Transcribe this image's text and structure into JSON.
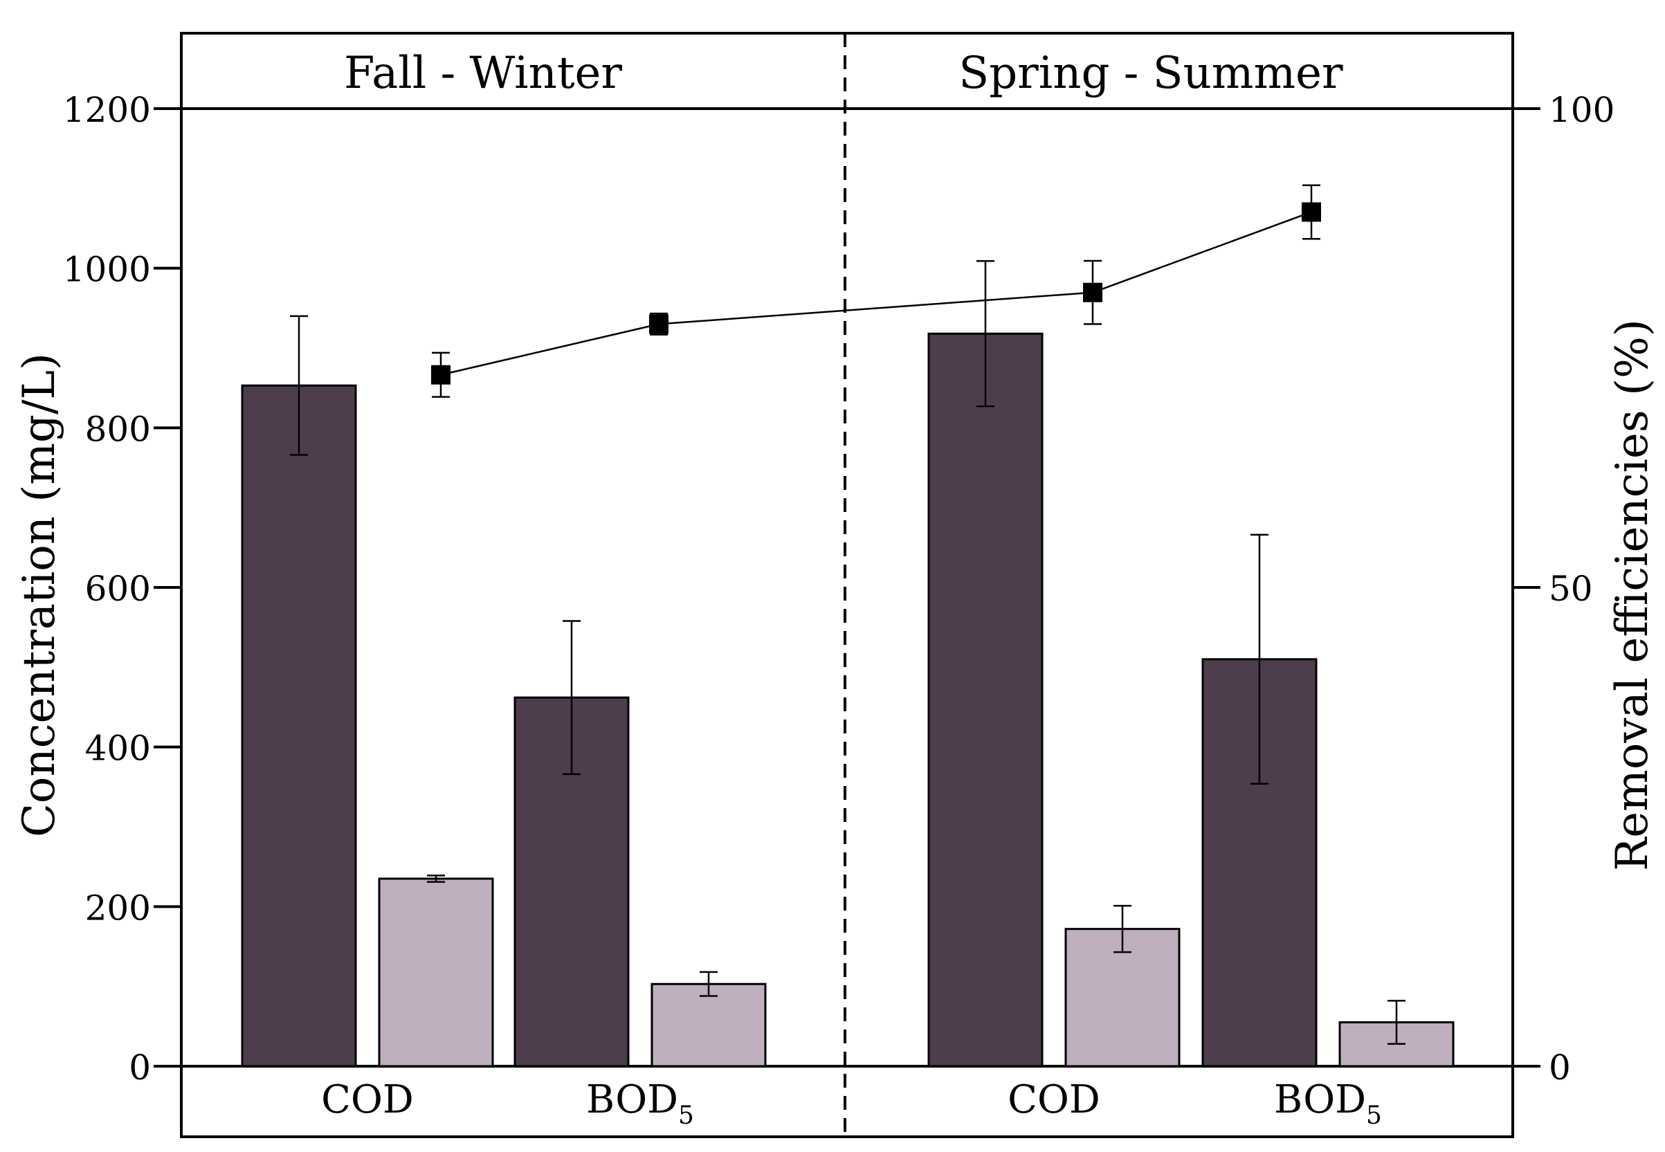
{
  "chart_data": {
    "type": "bar",
    "title": "",
    "panels": [
      {
        "label": "Fall - Winter",
        "groups": [
          "COD",
          "BOD5"
        ]
      },
      {
        "label": "Spring - Summer",
        "groups": [
          "COD",
          "BOD5"
        ]
      }
    ],
    "group_labels": [
      {
        "main": "COD",
        "sub": ""
      },
      {
        "main": "BOD",
        "sub": "5"
      },
      {
        "main": "COD",
        "sub": ""
      },
      {
        "main": "BOD",
        "sub": "5"
      }
    ],
    "ylabel_left": "Concentration (mg/L)",
    "ylabel_right": "Removal efficiencies (%)",
    "ylim_left": [
      0,
      1200
    ],
    "yticks_left": [
      0,
      200,
      400,
      600,
      800,
      1000,
      1200
    ],
    "ylim_right": [
      0,
      100
    ],
    "yticks_right": [
      0,
      50,
      100
    ],
    "bar_series": [
      {
        "color": "#4e3d4d",
        "values": [
          853,
          462,
          918,
          510
        ],
        "errors": [
          87,
          96,
          91,
          156
        ]
      },
      {
        "color": "#bfafbf",
        "values": [
          235,
          103,
          172,
          55
        ],
        "errors": [
          4,
          15,
          29,
          27
        ]
      }
    ],
    "line_series": {
      "axis": "right",
      "marker": "square",
      "color": "#000000",
      "values": [
        72.2,
        77.5,
        80.8,
        89.2
      ],
      "errors": [
        2.3,
        1.1,
        3.3,
        2.8
      ]
    },
    "grid": false,
    "legend": "none"
  }
}
